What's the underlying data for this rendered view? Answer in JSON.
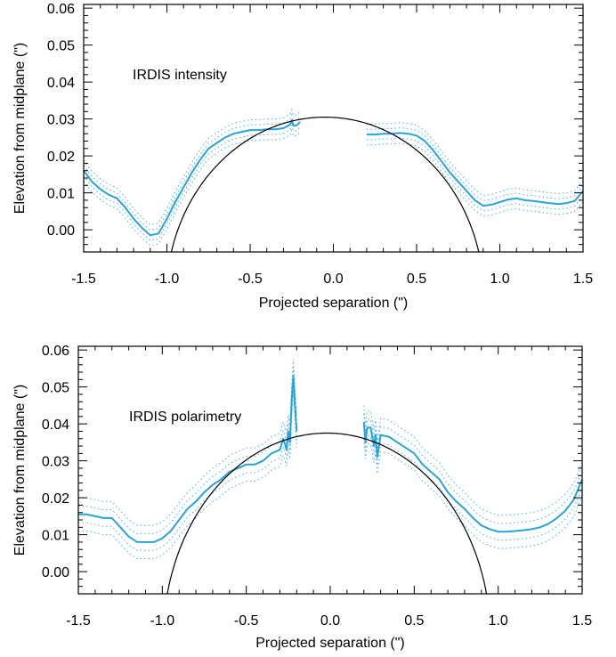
{
  "chart_data": [
    {
      "type": "line",
      "annotation": "IRDIS intensity",
      "xlabel": "Projected separation (\")",
      "ylabel": "Elevation from midplane (\")",
      "xlim": [
        -1.5,
        1.5
      ],
      "ylim": [
        -0.006,
        0.061
      ],
      "xticks": [
        -1.5,
        -1.0,
        -0.5,
        0.0,
        0.5,
        1.0,
        1.5
      ],
      "xtick_labels": [
        "-1.5",
        "-1.0",
        "-0.5",
        "0.0",
        "0.5",
        "1.0",
        "1.5"
      ],
      "yticks": [
        0.0,
        0.01,
        0.02,
        0.03,
        0.04,
        0.05,
        0.06
      ],
      "ytick_labels": [
        "0.00",
        "0.01",
        "0.02",
        "0.03",
        "0.04",
        "0.05",
        "0.06"
      ],
      "colors": {
        "data": "#29a3db",
        "model": "#000000"
      },
      "series": [
        {
          "x": [
            -1.5,
            -1.45,
            -1.4,
            -1.35,
            -1.3,
            -1.25,
            -1.2,
            -1.15,
            -1.1,
            -1.05,
            -1.0,
            -0.95,
            -0.9,
            -0.85,
            -0.8,
            -0.75,
            -0.7,
            -0.65,
            -0.6,
            -0.55,
            -0.5,
            -0.45,
            -0.4,
            -0.35,
            -0.3,
            -0.26,
            -0.25,
            -0.24,
            -0.22,
            -0.2
          ],
          "y": [
            0.016,
            0.013,
            0.011,
            0.0095,
            0.0085,
            0.006,
            0.003,
            0.0005,
            -0.0015,
            -0.001,
            0.003,
            0.0075,
            0.0115,
            0.0155,
            0.019,
            0.022,
            0.0235,
            0.025,
            0.026,
            0.0265,
            0.027,
            0.027,
            0.0272,
            0.0272,
            0.0275,
            0.0285,
            0.0297,
            0.0282,
            0.0283,
            0.0292
          ]
        },
        {
          "x": [
            0.2,
            0.25,
            0.3,
            0.35,
            0.4,
            0.45,
            0.5,
            0.55,
            0.6,
            0.65,
            0.7,
            0.75,
            0.8,
            0.85,
            0.9,
            0.95,
            1.0,
            1.05,
            1.1,
            1.15,
            1.2,
            1.25,
            1.3,
            1.35,
            1.4,
            1.45,
            1.5
          ],
          "y": [
            0.0258,
            0.0258,
            0.026,
            0.026,
            0.0262,
            0.026,
            0.0255,
            0.024,
            0.0215,
            0.0185,
            0.0155,
            0.013,
            0.0105,
            0.008,
            0.0065,
            0.0068,
            0.0075,
            0.0082,
            0.0085,
            0.008,
            0.0078,
            0.0075,
            0.0072,
            0.007,
            0.0072,
            0.0078,
            0.0105
          ]
        }
      ],
      "model_ellipse": {
        "x_center": -0.05,
        "half_width": 0.955,
        "y_top": 0.0305,
        "y_base": -0.0185
      }
    },
    {
      "type": "line",
      "annotation": "IRDIS polarimetry",
      "xlabel": "Projected separation (\")",
      "ylabel": "Elevation from midplane (\")",
      "xlim": [
        -1.5,
        1.5
      ],
      "ylim": [
        -0.006,
        0.061
      ],
      "xticks": [
        -1.5,
        -1.0,
        -0.5,
        0.0,
        0.5,
        1.0,
        1.5
      ],
      "xtick_labels": [
        "-1.5",
        "-1.0",
        "-0.5",
        "0.0",
        "0.5",
        "1.0",
        "1.5"
      ],
      "yticks": [
        0.0,
        0.01,
        0.02,
        0.03,
        0.04,
        0.05,
        0.06
      ],
      "ytick_labels": [
        "0.00",
        "0.01",
        "0.02",
        "0.03",
        "0.04",
        "0.05",
        "0.06"
      ],
      "colors": {
        "data": "#29a3db",
        "model": "#000000"
      },
      "series": [
        {
          "x": [
            -1.5,
            -1.45,
            -1.4,
            -1.35,
            -1.3,
            -1.25,
            -1.2,
            -1.15,
            -1.1,
            -1.05,
            -1.0,
            -0.95,
            -0.9,
            -0.85,
            -0.8,
            -0.75,
            -0.7,
            -0.65,
            -0.6,
            -0.55,
            -0.5,
            -0.45,
            -0.4,
            -0.35,
            -0.3,
            -0.28,
            -0.26,
            -0.25,
            -0.24,
            -0.23,
            -0.22,
            -0.21,
            -0.2
          ],
          "y": [
            0.0155,
            0.0155,
            0.015,
            0.0145,
            0.0145,
            0.012,
            0.0095,
            0.008,
            0.008,
            0.008,
            0.009,
            0.011,
            0.014,
            0.017,
            0.019,
            0.0215,
            0.0235,
            0.025,
            0.027,
            0.028,
            0.029,
            0.029,
            0.03,
            0.032,
            0.033,
            0.036,
            0.033,
            0.038,
            0.035,
            0.046,
            0.053,
            0.045,
            0.038
          ]
        },
        {
          "x": [
            0.2,
            0.21,
            0.22,
            0.24,
            0.26,
            0.27,
            0.28,
            0.3,
            0.35,
            0.4,
            0.45,
            0.5,
            0.55,
            0.6,
            0.65,
            0.7,
            0.75,
            0.8,
            0.85,
            0.9,
            0.95,
            1.0,
            1.05,
            1.1,
            1.15,
            1.2,
            1.25,
            1.3,
            1.35,
            1.4,
            1.45,
            1.5
          ],
          "y": [
            0.0405,
            0.035,
            0.039,
            0.039,
            0.034,
            0.037,
            0.031,
            0.037,
            0.0365,
            0.035,
            0.0335,
            0.032,
            0.029,
            0.027,
            0.025,
            0.0215,
            0.019,
            0.017,
            0.0145,
            0.0125,
            0.0115,
            0.0108,
            0.0108,
            0.011,
            0.0112,
            0.0115,
            0.012,
            0.013,
            0.0145,
            0.0165,
            0.0195,
            0.025
          ]
        }
      ],
      "model_ellipse": {
        "x_center": -0.02,
        "half_width": 0.975,
        "y_top": 0.0375,
        "y_base": -0.0185
      }
    }
  ]
}
